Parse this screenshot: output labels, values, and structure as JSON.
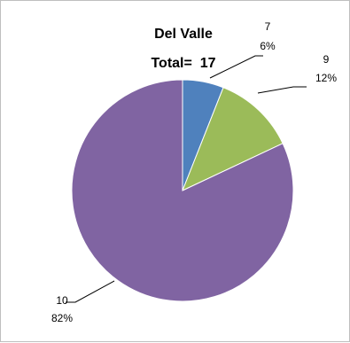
{
  "chart_data": {
    "type": "pie",
    "title_lines": [
      "Del Valle",
      "Total=  17"
    ],
    "categories": [
      "7",
      "9",
      "10"
    ],
    "values": [
      6,
      12,
      82
    ],
    "value_labels": [
      "6%",
      "12%",
      "82%"
    ],
    "colors": [
      "#4f81bd",
      "#9bbb59",
      "#8064a2"
    ],
    "legend": "none"
  }
}
